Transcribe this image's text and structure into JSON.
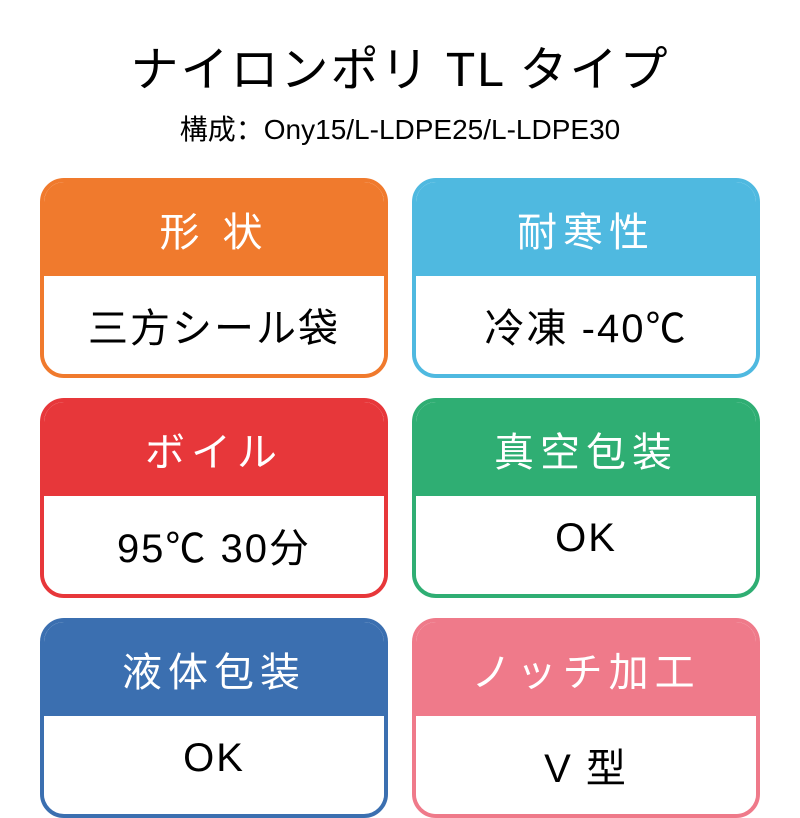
{
  "header": {
    "title": "ナイロンポリ TL タイプ",
    "subtitle": "構成：Ony15/L-LDPE25/L-LDPE30"
  },
  "cards": [
    {
      "label": "形 状",
      "value": "三方シール袋",
      "color": "#f07a2d"
    },
    {
      "label": "耐寒性",
      "value": "冷凍 -40℃",
      "color": "#4fb9e0"
    },
    {
      "label": "ボイル",
      "value": "95℃ 30分",
      "color": "#e7373a"
    },
    {
      "label": "真空包装",
      "value": "OK",
      "color": "#2fae73"
    },
    {
      "label": "液体包装",
      "value": "OK",
      "color": "#3b6fb0"
    },
    {
      "label": "ノッチ加工",
      "value": "V 型",
      "color": "#ef7a8a"
    }
  ],
  "style": {
    "background": "#ffffff",
    "title_fontsize": 48,
    "subtitle_fontsize": 28,
    "card_header_fontsize": 40,
    "card_body_fontsize": 40,
    "border_radius": 24,
    "border_width": 4
  }
}
